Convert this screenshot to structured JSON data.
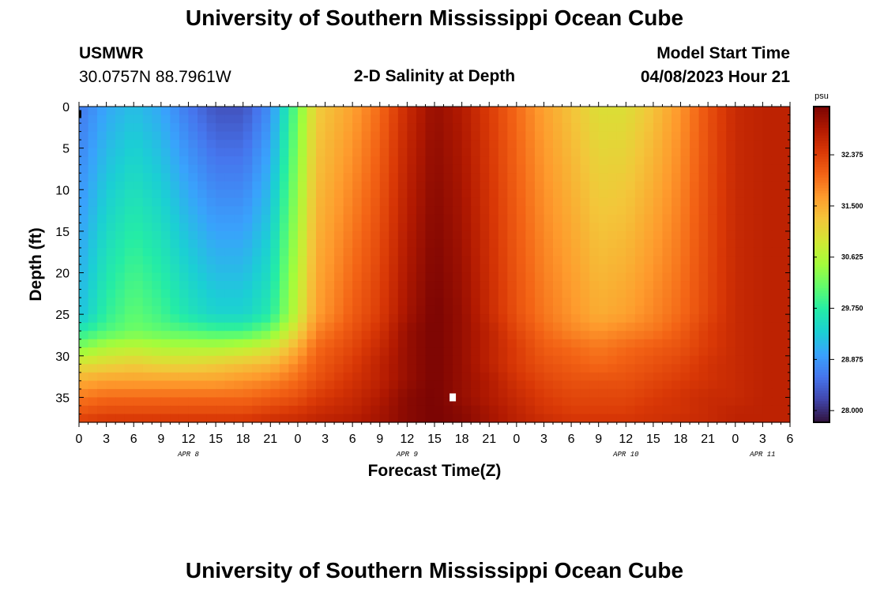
{
  "header": {
    "title": "University of Southern Mississippi Ocean Cube",
    "station": "USMWR",
    "coords": "30.0757N  88.7961W",
    "plot_title": "2-D Salinity at Depth",
    "model_label": "Model Start Time",
    "model_time": "04/08/2023 Hour 21"
  },
  "footer": {
    "title": "University of Southern Mississippi Ocean Cube"
  },
  "chart_data": {
    "type": "heatmap",
    "title": "2-D Salinity at Depth",
    "xlabel": "Forecast Time(Z)",
    "ylabel": "Depth (ft)",
    "colorbar_unit": "psu",
    "xlim_hours": [
      0,
      78
    ],
    "ylim": [
      0,
      38
    ],
    "y_ticks": [
      0,
      5,
      10,
      15,
      20,
      25,
      30,
      35
    ],
    "x_ticks": [
      {
        "h": 0,
        "label": "0"
      },
      {
        "h": 3,
        "label": "3"
      },
      {
        "h": 6,
        "label": "6"
      },
      {
        "h": 9,
        "label": "9"
      },
      {
        "h": 12,
        "label": "12"
      },
      {
        "h": 15,
        "label": "15"
      },
      {
        "h": 18,
        "label": "18"
      },
      {
        "h": 21,
        "label": "21"
      },
      {
        "h": 24,
        "label": "0"
      },
      {
        "h": 27,
        "label": "3"
      },
      {
        "h": 30,
        "label": "6"
      },
      {
        "h": 33,
        "label": "9"
      },
      {
        "h": 36,
        "label": "12"
      },
      {
        "h": 39,
        "label": "15"
      },
      {
        "h": 42,
        "label": "18"
      },
      {
        "h": 45,
        "label": "21"
      },
      {
        "h": 48,
        "label": "0"
      },
      {
        "h": 51,
        "label": "3"
      },
      {
        "h": 54,
        "label": "6"
      },
      {
        "h": 57,
        "label": "9"
      },
      {
        "h": 60,
        "label": "12"
      },
      {
        "h": 63,
        "label": "15"
      },
      {
        "h": 66,
        "label": "18"
      },
      {
        "h": 69,
        "label": "21"
      },
      {
        "h": 72,
        "label": "0"
      },
      {
        "h": 75,
        "label": "3"
      },
      {
        "h": 78,
        "label": "6"
      }
    ],
    "date_labels": [
      {
        "h": 12,
        "label": "APR 8"
      },
      {
        "h": 36,
        "label": "APR 9"
      },
      {
        "h": 60,
        "label": "APR 10"
      },
      {
        "h": 75,
        "label": "APR 11"
      }
    ],
    "colorbar_ticks": [
      28.0,
      28.875,
      29.75,
      30.625,
      31.5,
      32.375
    ],
    "colorbar_tick_labels": [
      "28.000",
      "28.875",
      "29.750",
      "30.625",
      "31.500",
      "32.375"
    ],
    "colorbar_range": [
      27.8,
      33.2
    ],
    "colormap": [
      "#30123b",
      "#4145ab",
      "#4675ed",
      "#39a2fc",
      "#1bcfd4",
      "#24eca6",
      "#61fc6c",
      "#a4fc3b",
      "#d1e834",
      "#f3c63a",
      "#fe9b2d",
      "#f36315",
      "#d93806",
      "#b11901",
      "#7a0403"
    ],
    "salinity_grid": {
      "depths": [
        0,
        25,
        27,
        29,
        31,
        33,
        35,
        37,
        38
      ],
      "hours": [
        0,
        3,
        6,
        9,
        12,
        15,
        18,
        21,
        24,
        26,
        30,
        33,
        36,
        39,
        42,
        45,
        48,
        51,
        54,
        57,
        60,
        63,
        66,
        69,
        72,
        75,
        78
      ],
      "values": [
        [
          28.6,
          29.0,
          29.2,
          29.0,
          28.6,
          28.3,
          28.3,
          28.8,
          30.2,
          31.2,
          31.6,
          32.0,
          32.6,
          33.0,
          32.8,
          32.4,
          32.0,
          31.6,
          31.3,
          31.0,
          31.0,
          31.3,
          31.7,
          32.2,
          32.6,
          32.7,
          32.7
        ],
        [
          29.2,
          29.8,
          30.1,
          29.9,
          29.6,
          29.4,
          29.4,
          29.7,
          30.8,
          31.6,
          32.1,
          32.4,
          32.9,
          33.2,
          33.0,
          32.6,
          32.2,
          31.9,
          31.7,
          31.5,
          31.6,
          31.8,
          32.0,
          32.3,
          32.6,
          32.7,
          32.7
        ],
        [
          29.7,
          30.0,
          30.2,
          30.1,
          30.0,
          29.9,
          29.9,
          30.2,
          31.1,
          31.8,
          32.2,
          32.5,
          33.0,
          33.2,
          33.0,
          32.7,
          32.3,
          32.0,
          31.8,
          31.7,
          31.8,
          31.9,
          32.1,
          32.4,
          32.6,
          32.7,
          32.7
        ],
        [
          30.3,
          30.6,
          30.7,
          30.6,
          30.6,
          30.6,
          30.7,
          30.9,
          31.5,
          32.0,
          32.3,
          32.6,
          33.0,
          33.2,
          33.0,
          32.7,
          32.4,
          32.1,
          32.0,
          31.9,
          32.0,
          32.1,
          32.2,
          32.4,
          32.6,
          32.7,
          32.7
        ],
        [
          31.0,
          31.1,
          31.2,
          31.1,
          31.1,
          31.2,
          31.3,
          31.4,
          31.8,
          32.1,
          32.4,
          32.7,
          33.0,
          33.2,
          33.0,
          32.7,
          32.4,
          32.2,
          32.1,
          32.0,
          32.1,
          32.2,
          32.3,
          32.5,
          32.6,
          32.7,
          32.7
        ],
        [
          31.5,
          31.6,
          31.6,
          31.6,
          31.6,
          31.6,
          31.7,
          31.8,
          32.0,
          32.2,
          32.5,
          32.7,
          33.0,
          33.2,
          33.0,
          32.8,
          32.5,
          32.3,
          32.2,
          32.2,
          32.2,
          32.3,
          32.4,
          32.5,
          32.6,
          32.7,
          32.7
        ],
        [
          31.9,
          32.0,
          32.0,
          32.0,
          32.0,
          32.0,
          32.0,
          32.1,
          32.2,
          32.4,
          32.6,
          32.8,
          33.1,
          33.2,
          33.0,
          32.8,
          32.6,
          32.4,
          32.3,
          32.3,
          32.3,
          32.4,
          32.5,
          32.6,
          32.6,
          32.7,
          32.7
        ],
        [
          32.2,
          32.3,
          32.3,
          32.3,
          32.3,
          32.3,
          32.3,
          32.4,
          32.5,
          32.6,
          32.7,
          32.9,
          33.1,
          33.2,
          33.1,
          32.9,
          32.7,
          32.5,
          32.4,
          32.4,
          32.4,
          32.5,
          32.5,
          32.6,
          32.7,
          32.7,
          32.7
        ],
        [
          32.4,
          32.5,
          32.5,
          32.5,
          32.5,
          32.5,
          32.5,
          32.6,
          32.6,
          32.7,
          32.8,
          32.9,
          33.1,
          33.2,
          33.1,
          32.9,
          32.7,
          32.6,
          32.5,
          32.5,
          32.5,
          32.5,
          32.6,
          32.6,
          32.7,
          32.7,
          32.7
        ]
      ]
    },
    "markers": [
      {
        "name": "white-marker",
        "h": 41,
        "depth": 35
      },
      {
        "name": "black-marker",
        "h": 0,
        "depth": 1
      }
    ]
  }
}
